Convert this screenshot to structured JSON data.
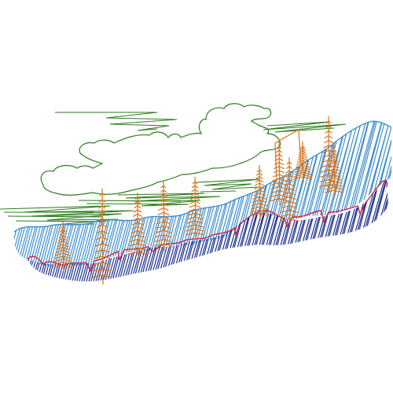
{
  "image": {
    "kind": "scribble-sketch",
    "colors": {
      "background": "#ffffff",
      "sky_lines": "#2e7d1f",
      "mountain_light": "#3f8fd0",
      "mountain_dark": "#1a2f8f",
      "ridge_line": "#d11e4a",
      "trees": "#d9731a"
    },
    "elements": [
      "cloud-outline",
      "horizon-scribble-lines",
      "blue-mountain-range",
      "dark-foreground-band",
      "red-ridge-line",
      "orange-conifer-trees"
    ]
  }
}
